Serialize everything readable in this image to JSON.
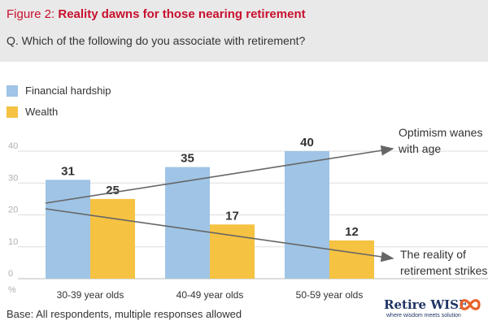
{
  "figure_label": "Figure 2:",
  "figure_title": "Reality dawns for those nearing retirement",
  "question": "Q. Which of the following do you associate with retirement?",
  "footnote": "Base: All respondents, multiple responses allowed",
  "brand": {
    "name_part1": "Retire ",
    "name_part2": "WISE",
    "tagline": "where wisdom meets solution",
    "logo_icon": "infinity-icon",
    "color": "#1f3566",
    "logo_color": "#e8622a"
  },
  "chart_data": {
    "type": "bar",
    "categories": [
      "30-39 year olds",
      "40-49 year olds",
      "50-59 year olds"
    ],
    "series": [
      {
        "name": "Financial hardship",
        "values": [
          31,
          35,
          40
        ],
        "color": "#9fc4e6"
      },
      {
        "name": "Wealth",
        "values": [
          25,
          17,
          12
        ],
        "color": "#f5c242"
      }
    ],
    "ylabel": "%",
    "ylim": [
      0,
      40
    ],
    "yticks": [
      "0",
      "10",
      "20",
      "30",
      "40"
    ],
    "legend_position": "top-left",
    "grid": true,
    "annotations": [
      {
        "line1": "Optimism wanes",
        "line2": "with age",
        "trend": "up"
      },
      {
        "line1": "The reality of",
        "line2": "retirement strikes",
        "trend": "down"
      }
    ]
  }
}
